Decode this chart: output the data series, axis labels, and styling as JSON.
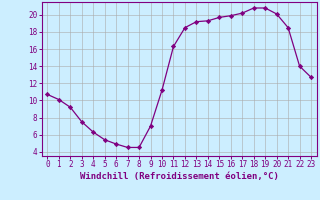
{
  "x": [
    0,
    1,
    2,
    3,
    4,
    5,
    6,
    7,
    8,
    9,
    10,
    11,
    12,
    13,
    14,
    15,
    16,
    17,
    18,
    19,
    20,
    21,
    22,
    23
  ],
  "y": [
    10.7,
    10.1,
    9.2,
    7.5,
    6.3,
    5.4,
    4.9,
    4.5,
    4.5,
    7.0,
    11.2,
    16.3,
    18.5,
    19.2,
    19.3,
    19.7,
    19.9,
    20.2,
    20.8,
    20.8,
    20.1,
    18.5,
    14.0,
    12.7
  ],
  "line_color": "#800080",
  "marker": "D",
  "markersize": 2.2,
  "linewidth": 0.9,
  "xlabel": "Windchill (Refroidissement éolien,°C)",
  "xlabel_fontsize": 6.5,
  "xlim": [
    -0.5,
    23.5
  ],
  "ylim": [
    3.5,
    21.5
  ],
  "yticks": [
    4,
    6,
    8,
    10,
    12,
    14,
    16,
    18,
    20
  ],
  "xticks": [
    0,
    1,
    2,
    3,
    4,
    5,
    6,
    7,
    8,
    9,
    10,
    11,
    12,
    13,
    14,
    15,
    16,
    17,
    18,
    19,
    20,
    21,
    22,
    23
  ],
  "bg_color": "#cceeff",
  "grid_color": "#aaaaaa",
  "tick_color": "#800080",
  "tick_fontsize": 5.5,
  "spine_color": "#800080"
}
